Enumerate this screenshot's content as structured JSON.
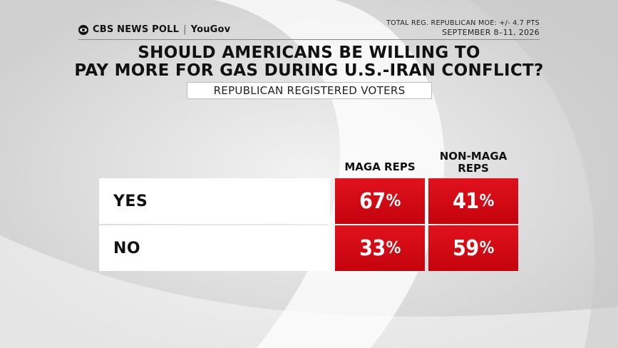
{
  "brand": {
    "network": "CBS NEWS POLL",
    "partner": "YouGov"
  },
  "meta": {
    "moe": "TOTAL REG. REPUBLICAN MOE: +/- 4.7 PTS",
    "dates": "SEPTEMBER 8–11, 2026"
  },
  "title_line1": "SHOULD AMERICANS BE WILLING TO",
  "title_line2": "PAY MORE FOR GAS DURING U.S.-IRAN CONFLICT?",
  "subtitle": "REPUBLICAN REGISTERED VOTERS",
  "colors": {
    "cell": "#d20a14",
    "background": "#dcdcdc"
  },
  "chart_data": {
    "type": "table",
    "title": "SHOULD AMERICANS BE WILLING TO PAY MORE FOR GAS DURING U.S.-IRAN CONFLICT?",
    "subtitle": "REPUBLICAN REGISTERED VOTERS",
    "columns": [
      "MAGA REPS",
      "NON-MAGA REPS"
    ],
    "column_labels": {
      "c1": "MAGA REPS",
      "c2_line1": "NON-MAGA",
      "c2_line2": "REPS"
    },
    "rows": [
      {
        "label": "YES",
        "values": [
          67,
          41
        ]
      },
      {
        "label": "NO",
        "values": [
          33,
          59
        ]
      }
    ],
    "unit": "%"
  }
}
